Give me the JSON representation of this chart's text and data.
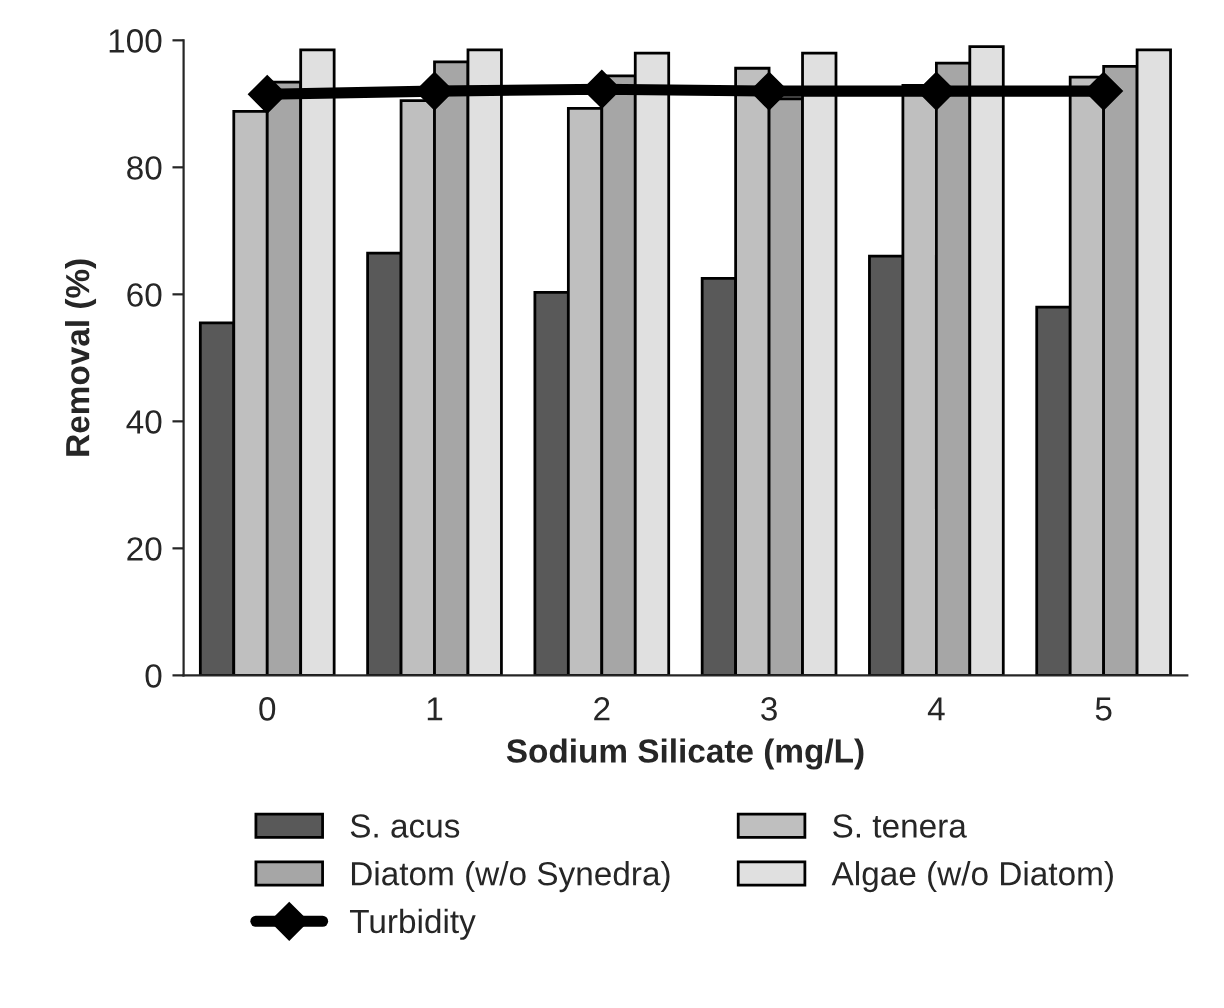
{
  "chart_data": {
    "type": "bar",
    "xlabel": "Sodium Silicate (mg/L)",
    "ylabel": "Removal (%)",
    "categories": [
      "0",
      "1",
      "2",
      "3",
      "4",
      "5"
    ],
    "series": [
      {
        "name": "S. acus",
        "color": "#595959",
        "values": [
          55.5,
          66.5,
          60.3,
          62.5,
          66,
          58
        ]
      },
      {
        "name": "S. tenera",
        "color": "#bfbfbf",
        "values": [
          88.8,
          90.5,
          89.3,
          95.6,
          92.9,
          94.2
        ]
      },
      {
        "name": "Diatom (w/o Synedra)",
        "color": "#a6a6a6",
        "values": [
          93.4,
          96.6,
          94.4,
          90.8,
          96.4,
          95.9
        ]
      },
      {
        "name": "Algae (w/o Diatom)",
        "color": "#e0e0e0",
        "values": [
          98.5,
          98.5,
          98,
          98,
          99,
          98.5
        ]
      },
      {
        "name": "Turbidity",
        "type": "line",
        "color": "#000000",
        "marker": "diamond",
        "values": [
          91.5,
          92,
          92.3,
          92,
          92,
          92
        ]
      }
    ],
    "ylim": [
      0,
      100
    ],
    "yticks": [
      0,
      20,
      40,
      60,
      80,
      100
    ],
    "grid": false,
    "legend": "bottom"
  }
}
